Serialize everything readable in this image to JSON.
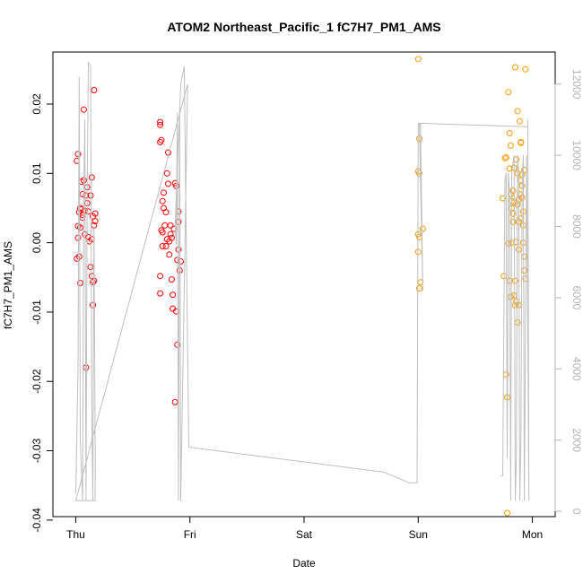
{
  "chart_data": {
    "type": "scatter",
    "title": "ATOM2 Northeast_Pacific_1 fC7H7_PM1_AMS",
    "xlabel": "Date",
    "ylabel": "fC7H7_PM1_AMS",
    "x_ticks": [
      "Thu",
      "Fri",
      "Sat",
      "Sun",
      "Mon"
    ],
    "x_unit": "days (Thu = 0)",
    "xlim": [
      -0.2,
      4.2
    ],
    "ylim": [
      -0.0395,
      0.0275
    ],
    "y_ticks": [
      -0.04,
      -0.03,
      -0.02,
      -0.01,
      0.0,
      0.01,
      0.02
    ],
    "y_tick_labels": [
      "-0.04",
      "-0.03",
      "-0.02",
      "-0.01",
      "0.00",
      "0.01",
      "0.02"
    ],
    "y2_lim": [
      -150,
      12900
    ],
    "y2_ticks": [
      0,
      2000,
      4000,
      6000,
      8000,
      10000,
      12000
    ],
    "y2_tick_labels": [
      "0",
      "2000",
      "4000",
      "6000",
      "8000",
      "10000",
      "12000"
    ],
    "colors": {
      "red_points": "#ff0000",
      "orange_points": "#ff9900",
      "altitude_line": "#bfbfbf",
      "axis": "#000000",
      "right_axis": "#b3b3b3"
    },
    "series": [
      {
        "marker": "circle",
        "color": "#ff0000",
        "points": [
          [
            0.01,
            0.0118
          ],
          [
            0.02,
            0.0128
          ],
          [
            0.02,
            0.0007
          ],
          [
            0.03,
            -0.002
          ],
          [
            0.04,
            -0.0058
          ],
          [
            0.03,
            0.0044
          ],
          [
            0.04,
            0.0022
          ],
          [
            0.05,
            0.0048
          ],
          [
            0.05,
            0.0088
          ],
          [
            0.06,
            0.007
          ],
          [
            0.06,
            0.0036
          ],
          [
            0.07,
            0.0192
          ],
          [
            0.07,
            0.009
          ],
          [
            0.08,
            0.0046
          ],
          [
            0.08,
            0.0012
          ],
          [
            0.09,
            -0.018
          ],
          [
            0.09,
            0.0068
          ],
          [
            0.1,
            0.008
          ],
          [
            0.1,
            0.0057
          ],
          [
            0.11,
            0.0045
          ],
          [
            0.11,
            0.0008
          ],
          [
            0.12,
            0.0002
          ],
          [
            0.13,
            0.0068
          ],
          [
            0.13,
            -0.0035
          ],
          [
            0.14,
            -0.0048
          ],
          [
            0.14,
            0.0094
          ],
          [
            0.15,
            0.0038
          ],
          [
            0.15,
            -0.0057
          ],
          [
            0.16,
            -0.0055
          ],
          [
            0.16,
            0.022
          ],
          [
            0.15,
            -0.009
          ],
          [
            0.14,
            0.0005
          ],
          [
            0.16,
            0.0025
          ],
          [
            0.17,
            0.0031
          ],
          [
            0.17,
            0.0042
          ],
          [
            0.04,
            0.005
          ],
          [
            0.01,
            -0.0023
          ],
          [
            0.06,
            0.004
          ],
          [
            0.02,
            0.0024
          ],
          [
            0.74,
            0.0174
          ],
          [
            0.74,
            0.017
          ],
          [
            0.75,
            0.0148
          ],
          [
            0.74,
            0.0145
          ],
          [
            0.76,
            0.006
          ],
          [
            0.77,
            0.005
          ],
          [
            0.75,
            0.0018
          ],
          [
            0.76,
            -0.0005
          ],
          [
            0.74,
            -0.0048
          ],
          [
            0.74,
            -0.0073
          ],
          [
            0.77,
            0.0072
          ],
          [
            0.78,
            0.0025
          ],
          [
            0.79,
            0.0044
          ],
          [
            0.8,
            0.01
          ],
          [
            0.8,
            0.0005
          ],
          [
            0.81,
            0.013
          ],
          [
            0.81,
            0.0085
          ],
          [
            0.82,
            0.0002
          ],
          [
            0.82,
            -0.0017
          ],
          [
            0.83,
            0.0025
          ],
          [
            0.83,
            0.0012
          ],
          [
            0.84,
            -0.0053
          ],
          [
            0.85,
            -0.0095
          ],
          [
            0.85,
            -0.0075
          ],
          [
            0.86,
            0.002
          ],
          [
            0.87,
            -0.023
          ],
          [
            0.87,
            0.0086
          ],
          [
            0.88,
            -0.0099
          ],
          [
            0.89,
            -0.0025
          ],
          [
            0.89,
            -0.0147
          ],
          [
            0.9,
            0.0045
          ],
          [
            0.9,
            -0.001
          ],
          [
            0.91,
            -0.004
          ],
          [
            0.92,
            -0.0027
          ],
          [
            0.9,
            0.003
          ],
          [
            0.84,
            0.0007
          ],
          [
            0.79,
            -0.0005
          ],
          [
            0.76,
            0.0015
          ],
          [
            0.88,
            0.0082
          ]
        ]
      },
      {
        "marker": "circle",
        "color": "#ff9900",
        "points": [
          [
            3.0,
            0.0265
          ],
          [
            3.01,
            0.015
          ],
          [
            3.0,
            0.0103
          ],
          [
            3.01,
            0.01
          ],
          [
            3.0,
            0.0012
          ],
          [
            3.01,
            0.0008
          ],
          [
            3.0,
            -0.0013
          ],
          [
            3.02,
            -0.0057
          ],
          [
            3.01,
            -0.0066
          ],
          [
            3.04,
            0.002
          ],
          [
            3.74,
            0.0064
          ],
          [
            3.76,
            0.0122
          ],
          [
            3.77,
            0.0123
          ],
          [
            3.77,
            -0.019
          ],
          [
            3.78,
            -0.0223
          ],
          [
            3.78,
            -0.039
          ],
          [
            3.79,
            0.0217
          ],
          [
            3.8,
            0.0107
          ],
          [
            3.8,
            0.0158
          ],
          [
            3.81,
            0.014
          ],
          [
            3.81,
            0.007
          ],
          [
            3.82,
            0.006
          ],
          [
            3.82,
            0.005
          ],
          [
            3.83,
            0.0042
          ],
          [
            3.83,
            0.003
          ],
          [
            3.84,
            0.0108
          ],
          [
            3.84,
            -0.0076
          ],
          [
            3.85,
            -0.009
          ],
          [
            3.85,
            0.0253
          ],
          [
            3.86,
            0.012
          ],
          [
            3.87,
            0.019
          ],
          [
            3.87,
            0.01
          ],
          [
            3.88,
            0.003
          ],
          [
            3.88,
            -0.001
          ],
          [
            3.89,
            0.0175
          ],
          [
            3.9,
            0.0144
          ],
          [
            3.9,
            0.0145
          ],
          [
            3.91,
            0.0082
          ],
          [
            3.91,
            0.0065
          ],
          [
            3.92,
            0.0045
          ],
          [
            3.92,
            0.0025
          ],
          [
            3.93,
            -0.002
          ],
          [
            3.93,
            -0.004
          ],
          [
            3.94,
            0.025
          ],
          [
            3.94,
            -0.0052
          ],
          [
            3.8,
            -0.0055
          ],
          [
            3.81,
            -0.0078
          ],
          [
            3.83,
            0.0075
          ],
          [
            3.85,
            -0.0055
          ],
          [
            3.86,
            -0.0085
          ],
          [
            3.87,
            -0.0115
          ],
          [
            3.88,
            0.0062
          ],
          [
            3.89,
            0.007
          ],
          [
            3.9,
            0.009
          ],
          [
            3.91,
            0.0098
          ],
          [
            3.86,
            0.0001
          ],
          [
            3.79,
            -0.0001
          ],
          [
            3.82,
            0.0
          ],
          [
            3.84,
            0.0058
          ],
          [
            3.87,
            0.0055
          ],
          [
            3.9,
            0.0035
          ],
          [
            3.88,
            -0.009
          ],
          [
            3.75,
            -0.0048
          ],
          [
            3.92,
            0.0
          ],
          [
            3.93,
            0.0105
          ]
        ]
      },
      {
        "kind": "line",
        "axis": "right",
        "color": "#bfbfbf",
        "points": [
          [
            0.0,
            500
          ],
          [
            0.02,
            4000
          ],
          [
            0.03,
            12200
          ],
          [
            0.04,
            2000
          ],
          [
            0.06,
            300
          ],
          [
            0.07,
            9000
          ],
          [
            0.08,
            11000
          ],
          [
            0.09,
            300
          ],
          [
            0.1,
            9000
          ],
          [
            0.11,
            12600
          ],
          [
            0.13,
            12500
          ],
          [
            0.14,
            3000
          ],
          [
            0.15,
            300
          ],
          [
            0.16,
            8000
          ],
          [
            0.17,
            1800
          ],
          [
            0.17,
            300
          ],
          [
            0.0,
            300
          ],
          [
            0.98,
            12000
          ],
          [
            0.92,
            300
          ],
          [
            0.91,
            11300
          ],
          [
            0.9,
            300
          ],
          [
            0.89,
            11200
          ],
          [
            0.88,
            7500
          ],
          [
            0.87,
            8000
          ],
          [
            0.92,
            12000
          ],
          [
            0.95,
            12500
          ],
          [
            0.99,
            1800
          ],
          [
            2.7,
            1100
          ],
          [
            2.92,
            800
          ],
          [
            2.99,
            800
          ],
          [
            3.0,
            10900
          ],
          [
            3.01,
            10900
          ],
          [
            3.04,
            6200
          ],
          [
            3.02,
            10900
          ],
          [
            3.96,
            10800
          ],
          [
            3.96,
            11000
          ],
          [
            3.97,
            300
          ],
          [
            3.95,
            10000
          ],
          [
            3.93,
            300
          ],
          [
            3.92,
            10000
          ],
          [
            3.91,
            9000
          ],
          [
            3.9,
            2000
          ],
          [
            3.89,
            300
          ],
          [
            3.88,
            9500
          ],
          [
            3.87,
            10000
          ],
          [
            3.86,
            1500
          ],
          [
            3.85,
            300
          ],
          [
            3.84,
            10000
          ],
          [
            3.82,
            9500
          ],
          [
            3.81,
            300
          ],
          [
            3.8,
            9000
          ],
          [
            3.79,
            9500
          ],
          [
            3.78,
            1500
          ],
          [
            3.77,
            9500
          ],
          [
            3.76,
            9300
          ],
          [
            3.74,
            1000
          ],
          [
            3.72,
            1000
          ]
        ]
      }
    ]
  }
}
